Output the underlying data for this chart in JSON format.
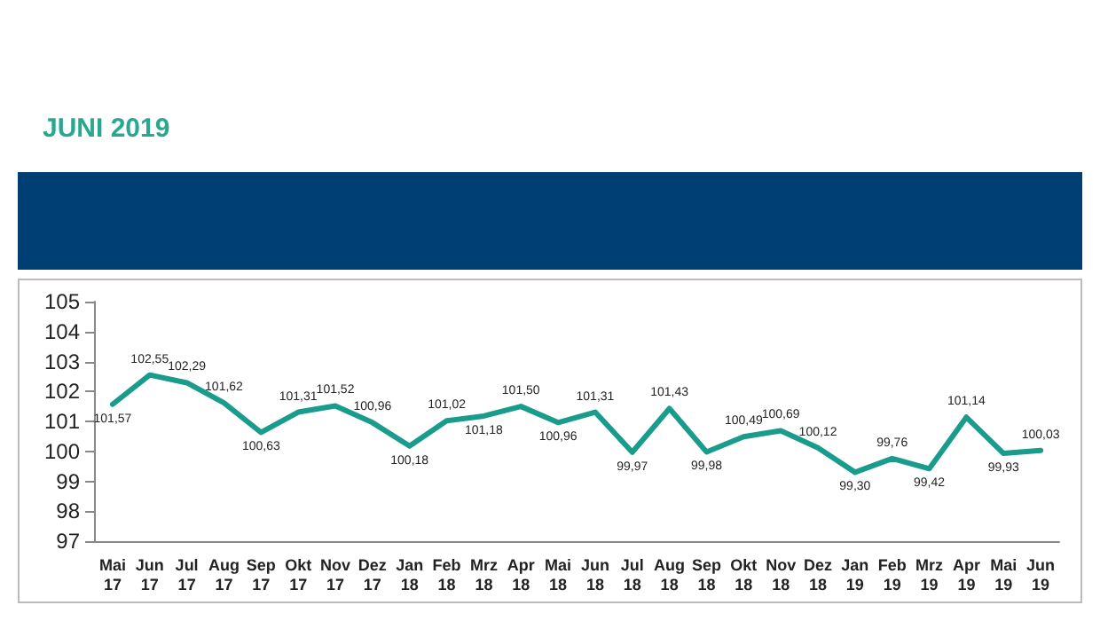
{
  "chart_data": {
    "type": "line",
    "title": "JUNI 2019",
    "categories": [
      "Mai\n17",
      "Jun\n17",
      "Jul\n17",
      "Aug\n17",
      "Sep\n17",
      "Okt\n17",
      "Nov\n17",
      "Dez\n17",
      "Jan\n18",
      "Feb\n18",
      "Mrz\n18",
      "Apr\n18",
      "Mai\n18",
      "Jun\n18",
      "Jul\n18",
      "Aug\n18",
      "Sep\n18",
      "Okt\n18",
      "Nov\n18",
      "Dez\n18",
      "Jan\n19",
      "Feb\n19",
      "Mrz\n19",
      "Apr\n19",
      "Mai\n19",
      "Jun\n19"
    ],
    "series": [
      {
        "color": "#1a9c8c",
        "values": [
          101.57,
          102.55,
          102.29,
          101.62,
          100.63,
          101.31,
          101.52,
          100.96,
          100.18,
          101.02,
          101.18,
          101.5,
          100.96,
          101.31,
          99.97,
          101.43,
          99.98,
          100.49,
          100.69,
          100.12,
          99.3,
          99.76,
          99.42,
          101.14,
          99.93,
          100.03
        ],
        "value_labels": [
          "101,57",
          "102,55",
          "102,29",
          "101,62",
          "100,63",
          "101,31",
          "101,52",
          "100,96",
          "100,18",
          "101,02",
          "101,18",
          "101,50",
          "100,96",
          "101,31",
          "99,97",
          "101,43",
          "99,98",
          "100,49",
          "100,69",
          "100,12",
          "99,30",
          "99,76",
          "99,42",
          "101,14",
          "99,93",
          "100,03"
        ]
      }
    ],
    "ylim": [
      97,
      105
    ],
    "yticks": [
      97,
      98,
      99,
      100,
      101,
      102,
      103,
      104,
      105
    ],
    "grid": false,
    "marker": "none",
    "line_style": "solid"
  }
}
